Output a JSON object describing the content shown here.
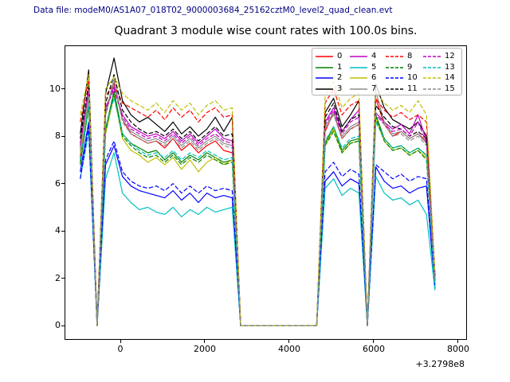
{
  "figure": {
    "data_file_text": "Data file: modeM0/AS1A07_018T02_9000003684_25162cztM0_level2_quad_clean.evt",
    "data_file_color": "#000080"
  },
  "chart_data": {
    "type": "line",
    "title": "Quadrant 3 module wise count rates with 100.0s bins.",
    "xlabel": "",
    "ylabel": "",
    "x_axis_offset_label": "+3.2798e8",
    "xticks": [
      0,
      2000,
      4000,
      6000,
      8000
    ],
    "yticks": [
      0,
      2,
      4,
      6,
      8,
      10
    ],
    "xlim": [
      -1302,
      8189
    ],
    "ylim": [
      -0.56,
      11.8
    ],
    "grid": false,
    "legend_position": "upper right",
    "x_start": -950,
    "x_step": 200,
    "series": [
      {
        "label": "0",
        "color": "#ff0000",
        "dash": false,
        "values": [
          7.1,
          9.9,
          0,
          8.9,
          10.3,
          8.7,
          8.1,
          7.9,
          7.7,
          7.8,
          7.5,
          7.9,
          7.4,
          7.7,
          7.3,
          7.6,
          7.8,
          7.4,
          7.3,
          0,
          0,
          0,
          0,
          0,
          0,
          0,
          0,
          0,
          0,
          8.2,
          9.0,
          7.9,
          8.3,
          8.5,
          0,
          9.6,
          8.5,
          8.0,
          8.2,
          7.9,
          8.1,
          7.8,
          2.1
        ]
      },
      {
        "label": "1",
        "color": "#008000",
        "dash": false,
        "values": [
          6.8,
          9.3,
          0,
          8.3,
          9.9,
          8.1,
          7.7,
          7.5,
          7.3,
          7.4,
          7.0,
          7.3,
          6.9,
          7.2,
          7.0,
          7.3,
          7.1,
          6.9,
          7.0,
          0,
          0,
          0,
          0,
          0,
          0,
          0,
          0,
          0,
          0,
          7.7,
          8.4,
          7.4,
          7.8,
          7.9,
          0,
          8.9,
          7.9,
          7.5,
          7.6,
          7.3,
          7.5,
          7.2,
          1.9
        ]
      },
      {
        "label": "2",
        "color": "#0000ff",
        "dash": false,
        "values": [
          6.5,
          8.6,
          0,
          6.8,
          7.6,
          6.3,
          5.9,
          5.7,
          5.6,
          5.5,
          5.4,
          5.7,
          5.3,
          5.6,
          5.2,
          5.6,
          5.4,
          5.5,
          5.4,
          0,
          0,
          0,
          0,
          0,
          0,
          0,
          0,
          0,
          0,
          6.1,
          6.5,
          5.9,
          6.2,
          6.0,
          0,
          6.7,
          6.1,
          5.8,
          5.9,
          5.6,
          5.8,
          5.9,
          1.6
        ]
      },
      {
        "label": "3",
        "color": "#000000",
        "dash": false,
        "values": [
          8.1,
          10.8,
          0,
          9.8,
          11.3,
          9.5,
          8.9,
          8.6,
          8.8,
          8.5,
          8.2,
          8.6,
          8.1,
          8.4,
          8.0,
          8.3,
          8.8,
          8.2,
          8.8,
          0,
          0,
          0,
          0,
          0,
          0,
          0,
          0,
          0,
          0,
          9.0,
          9.6,
          8.4,
          8.9,
          9.5,
          0,
          10.2,
          9.2,
          8.7,
          8.5,
          8.3,
          8.6,
          8.0,
          2.2
        ]
      },
      {
        "label": "4",
        "color": "#bf00bf",
        "dash": false,
        "values": [
          7.7,
          10.0,
          0,
          9.2,
          10.1,
          8.9,
          8.4,
          8.2,
          8.0,
          8.1,
          7.9,
          8.2,
          7.8,
          8.1,
          7.7,
          8.0,
          8.3,
          7.9,
          7.8,
          0,
          0,
          0,
          0,
          0,
          0,
          0,
          0,
          0,
          0,
          8.6,
          9.2,
          8.2,
          8.7,
          9.1,
          0,
          9.0,
          8.6,
          8.3,
          8.5,
          8.1,
          8.9,
          7.8,
          2.0
        ]
      },
      {
        "label": "5",
        "color": "#00bfbf",
        "dash": false,
        "values": [
          6.2,
          8.2,
          0,
          6.2,
          7.3,
          5.6,
          5.2,
          4.9,
          5.0,
          4.8,
          4.7,
          5.0,
          4.6,
          4.9,
          4.7,
          5.0,
          4.8,
          4.9,
          5.0,
          0,
          0,
          0,
          0,
          0,
          0,
          0,
          0,
          0,
          0,
          5.8,
          6.2,
          5.5,
          5.8,
          5.6,
          0,
          6.3,
          5.6,
          5.3,
          5.4,
          5.1,
          5.3,
          4.7,
          1.5
        ]
      },
      {
        "label": "6",
        "color": "#bfbf00",
        "dash": false,
        "values": [
          7.3,
          9.6,
          0,
          8.1,
          9.7,
          7.9,
          7.4,
          7.2,
          6.9,
          7.1,
          6.8,
          7.1,
          6.6,
          7.0,
          6.5,
          6.9,
          7.1,
          6.8,
          7.0,
          0,
          0,
          0,
          0,
          0,
          0,
          0,
          0,
          0,
          0,
          7.6,
          8.3,
          7.3,
          7.7,
          7.8,
          0,
          8.7,
          7.8,
          7.4,
          7.5,
          7.2,
          7.4,
          7.1,
          1.8
        ]
      },
      {
        "label": "7",
        "color": "#8c8c8c",
        "dash": false,
        "values": [
          7.5,
          9.8,
          0,
          9.0,
          10.4,
          8.7,
          8.2,
          8.0,
          7.8,
          7.9,
          7.7,
          8.0,
          7.6,
          7.9,
          7.5,
          7.8,
          8.0,
          7.7,
          7.6,
          0,
          0,
          0,
          0,
          0,
          0,
          0,
          0,
          0,
          0,
          8.4,
          9.0,
          8.0,
          8.4,
          8.6,
          0,
          9.9,
          8.6,
          8.1,
          8.2,
          7.9,
          8.1,
          7.7,
          2.0
        ]
      },
      {
        "label": "8",
        "color": "#ff0000",
        "dash": true,
        "values": [
          8.6,
          10.4,
          0,
          9.7,
          10.2,
          9.4,
          9.2,
          9.0,
          8.8,
          9.1,
          8.7,
          9.2,
          8.8,
          9.1,
          8.6,
          9.0,
          9.2,
          8.8,
          8.9,
          0,
          0,
          0,
          0,
          0,
          0,
          0,
          0,
          0,
          0,
          9.4,
          10.0,
          8.9,
          9.3,
          9.5,
          0,
          9.6,
          9.1,
          8.8,
          9.0,
          8.7,
          8.9,
          8.6,
          2.1
        ]
      },
      {
        "label": "9",
        "color": "#008000",
        "dash": true,
        "values": [
          6.9,
          9.2,
          0,
          8.2,
          9.8,
          8.0,
          7.6,
          7.3,
          7.1,
          7.2,
          6.9,
          7.2,
          6.8,
          7.1,
          6.9,
          7.2,
          7.0,
          6.8,
          6.9,
          0,
          0,
          0,
          0,
          0,
          0,
          0,
          0,
          0,
          0,
          7.6,
          8.2,
          7.3,
          7.7,
          7.8,
          0,
          8.8,
          7.8,
          7.4,
          7.5,
          7.2,
          7.4,
          7.0,
          1.9
        ]
      },
      {
        "label": "10",
        "color": "#0000ff",
        "dash": true,
        "values": [
          6.2,
          8.4,
          0,
          7.0,
          7.8,
          6.5,
          6.1,
          5.9,
          5.8,
          5.9,
          5.7,
          6.0,
          5.6,
          5.9,
          5.6,
          5.9,
          5.7,
          5.8,
          5.7,
          0,
          0,
          0,
          0,
          0,
          0,
          0,
          0,
          0,
          0,
          6.5,
          6.9,
          6.3,
          6.6,
          6.4,
          0,
          6.8,
          6.5,
          6.2,
          6.4,
          6.1,
          6.3,
          6.2,
          1.7
        ]
      },
      {
        "label": "11",
        "color": "#000000",
        "dash": true,
        "values": [
          7.9,
          10.2,
          0,
          9.4,
          10.6,
          9.1,
          8.6,
          8.3,
          8.1,
          8.2,
          8.0,
          8.3,
          7.9,
          8.2,
          7.8,
          8.1,
          8.4,
          8.0,
          8.1,
          0,
          0,
          0,
          0,
          0,
          0,
          0,
          0,
          0,
          0,
          8.8,
          9.4,
          8.2,
          8.7,
          8.9,
          0,
          9.3,
          8.8,
          8.4,
          8.3,
          8.0,
          8.2,
          7.9,
          2.1
        ]
      },
      {
        "label": "12",
        "color": "#bf00bf",
        "dash": true,
        "values": [
          7.6,
          9.9,
          0,
          9.1,
          10.0,
          8.8,
          8.3,
          8.1,
          7.9,
          8.0,
          7.8,
          8.1,
          7.7,
          8.0,
          7.6,
          7.9,
          8.1,
          7.8,
          7.7,
          0,
          0,
          0,
          0,
          0,
          0,
          0,
          0,
          0,
          0,
          8.5,
          9.1,
          8.1,
          8.6,
          8.8,
          0,
          8.9,
          8.5,
          8.2,
          8.3,
          8.0,
          8.6,
          7.7,
          2.0
        ]
      },
      {
        "label": "13",
        "color": "#00bfbf",
        "dash": true,
        "values": [
          7.0,
          9.4,
          0,
          8.4,
          9.6,
          8.1,
          7.7,
          7.4,
          7.2,
          7.3,
          7.1,
          7.4,
          7.0,
          7.3,
          7.1,
          7.4,
          7.2,
          7.0,
          7.1,
          0,
          0,
          0,
          0,
          0,
          0,
          0,
          0,
          0,
          0,
          7.8,
          8.4,
          7.5,
          7.9,
          8.0,
          0,
          8.6,
          7.9,
          7.5,
          7.6,
          7.3,
          7.5,
          7.2,
          1.5
        ]
      },
      {
        "label": "14",
        "color": "#bfbf00",
        "dash": true,
        "values": [
          8.9,
          10.6,
          0,
          10.0,
          10.5,
          9.8,
          9.5,
          9.3,
          9.1,
          9.4,
          9.0,
          9.5,
          9.1,
          9.4,
          8.9,
          9.3,
          9.5,
          9.1,
          9.2,
          0,
          0,
          0,
          0,
          0,
          0,
          0,
          0,
          0,
          0,
          9.7,
          10.3,
          9.2,
          9.6,
          9.8,
          0,
          9.9,
          9.4,
          9.1,
          9.3,
          9.0,
          9.5,
          8.9,
          2.2
        ]
      },
      {
        "label": "15",
        "color": "#8c8c8c",
        "dash": true,
        "values": [
          7.4,
          9.7,
          0,
          8.9,
          10.3,
          8.6,
          8.1,
          7.9,
          7.7,
          7.8,
          7.6,
          7.9,
          7.5,
          7.8,
          7.4,
          7.7,
          7.9,
          7.6,
          7.5,
          0,
          0,
          0,
          0,
          0,
          0,
          0,
          0,
          0,
          0,
          8.3,
          8.9,
          7.9,
          8.3,
          8.5,
          0,
          9.0,
          8.5,
          8.0,
          8.1,
          7.8,
          8.0,
          7.6,
          1.9
        ]
      }
    ]
  }
}
